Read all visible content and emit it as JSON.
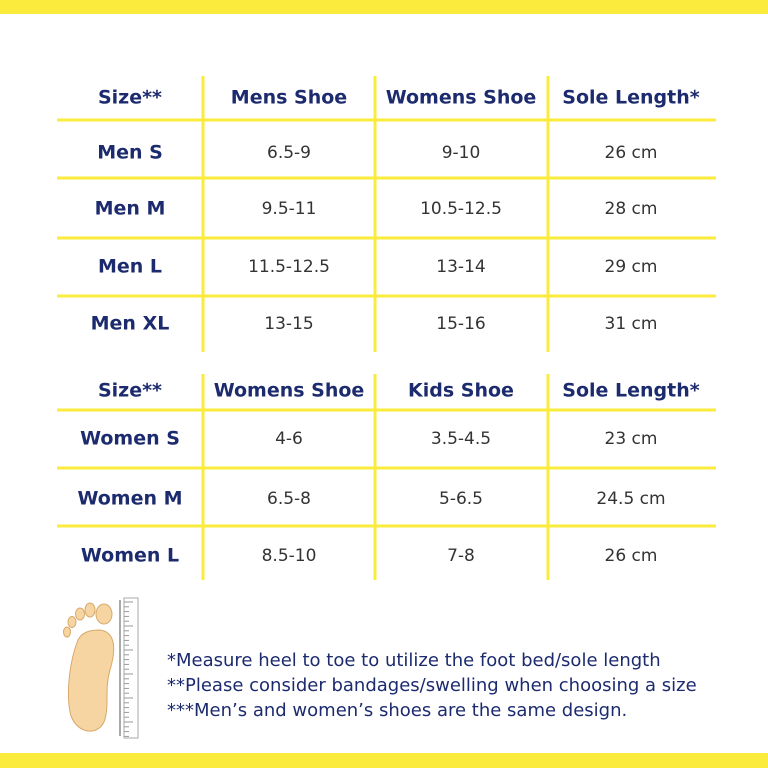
{
  "tables": [
    {
      "header": [
        "Size**",
        "Mens Shoe",
        "Womens Shoe",
        "Sole Length*"
      ],
      "rows": [
        [
          "Men S",
          "6.5-9",
          "9-10",
          "26 cm"
        ],
        [
          "Men M",
          "9.5-11",
          "10.5-12.5",
          "28 cm"
        ],
        [
          "Men L",
          "11.5-12.5",
          "13-14",
          "29 cm"
        ],
        [
          "Men XL",
          "13-15",
          "15-16",
          "31 cm"
        ]
      ]
    },
    {
      "header": [
        "Size**",
        "Womens Shoe",
        "Kids Shoe",
        "Sole Length*"
      ],
      "rows": [
        [
          "Women S",
          "4-6",
          "3.5-4.5",
          "23 cm"
        ],
        [
          "Women M",
          "6.5-8",
          "5-6.5",
          "24.5 cm"
        ],
        [
          "Women L",
          "8.5-10",
          "7-8",
          "26 cm"
        ]
      ]
    }
  ],
  "notes": [
    "*Measure heel to toe to utilize the foot bed/sole length",
    "**Please consider bandages/swelling when choosing a size",
    "***Men’s and women’s shoes are the same design."
  ]
}
